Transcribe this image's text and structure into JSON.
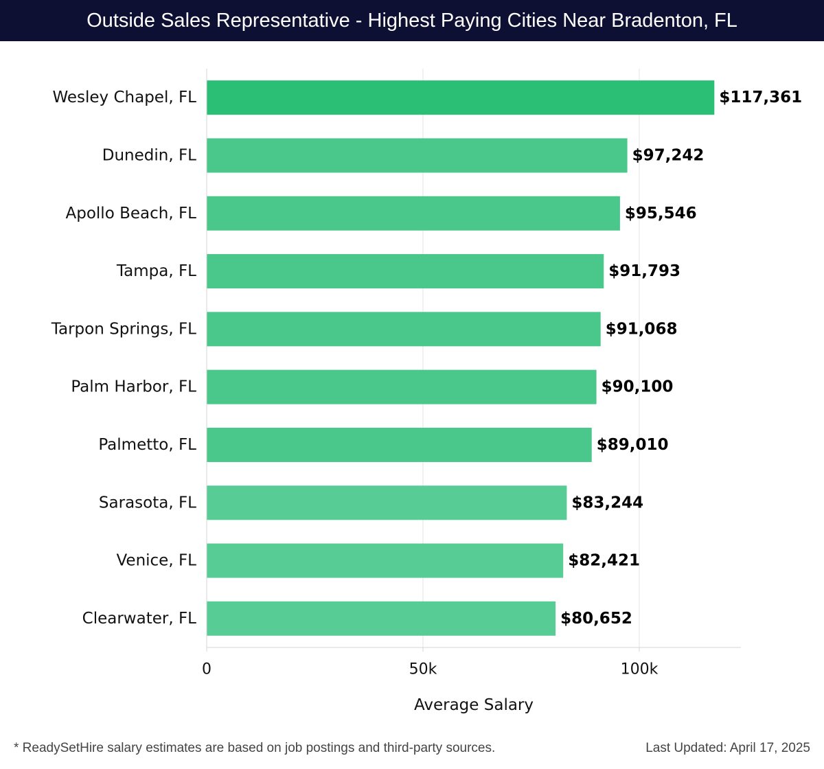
{
  "header": {
    "title": "Outside Sales Representative - Highest Paying Cities Near Bradenton, FL"
  },
  "chart_data": {
    "type": "bar",
    "orientation": "horizontal",
    "title": "Outside Sales Representative - Highest Paying Cities Near Bradenton, FL",
    "xlabel": "Average Salary",
    "ylabel": "",
    "xlim": [
      0,
      123500
    ],
    "xticks": [
      0,
      50000,
      100000
    ],
    "xtick_labels": [
      "0",
      "50k",
      "100k"
    ],
    "grid": true,
    "categories": [
      "Wesley Chapel, FL",
      "Dunedin, FL",
      "Apollo Beach, FL",
      "Tampa, FL",
      "Tarpon Springs, FL",
      "Palm Harbor, FL",
      "Palmetto, FL",
      "Sarasota, FL",
      "Venice, FL",
      "Clearwater, FL"
    ],
    "values": [
      117361,
      97242,
      95546,
      91793,
      91068,
      90100,
      89010,
      83244,
      82421,
      80652
    ],
    "value_labels": [
      "$117,361",
      "$97,242",
      "$95,546",
      "$91,793",
      "$91,068",
      "$90,100",
      "$89,010",
      "$83,244",
      "$82,421",
      "$80,652"
    ],
    "colors": [
      "#2bbf76",
      "#4ac78a",
      "#4ac78a",
      "#4ac78a",
      "#4ac78a",
      "#4ac78a",
      "#4ac78a",
      "#58cc95",
      "#58cc95",
      "#58cc95"
    ]
  },
  "footer": {
    "note": "* ReadySetHire salary estimates are based on job postings and third-party sources.",
    "updated": "Last Updated: April 17, 2025"
  }
}
